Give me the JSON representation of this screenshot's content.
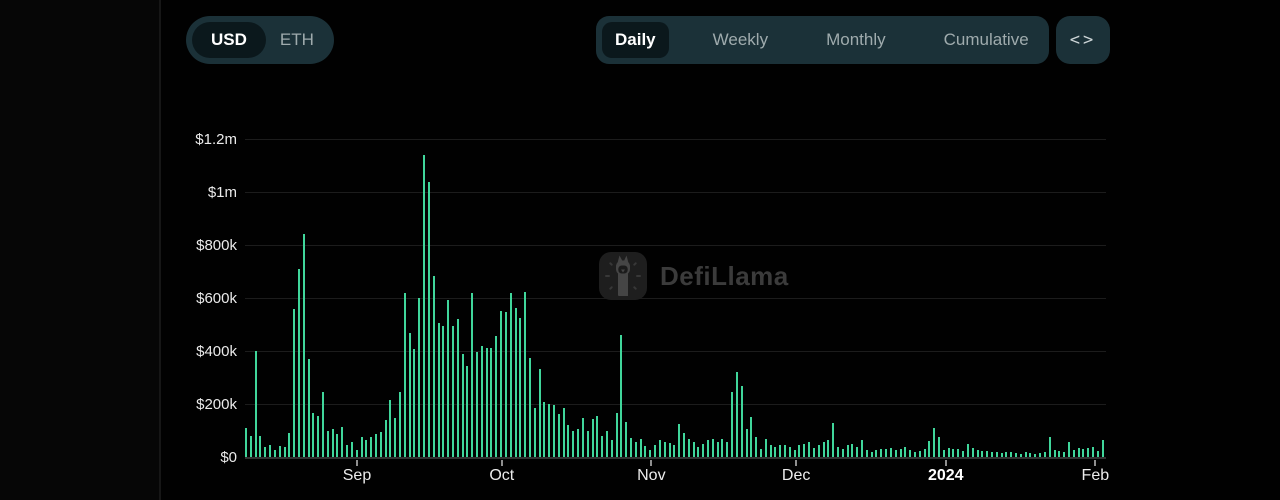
{
  "header": {
    "currency_toggle": {
      "options": [
        "USD",
        "ETH"
      ],
      "selected": "USD"
    },
    "period_tabs": {
      "options": [
        "Daily",
        "Weekly",
        "Monthly",
        "Cumulative"
      ],
      "selected": "Daily"
    },
    "embed_button_label": "<>"
  },
  "watermark": {
    "text": "DefiLlama"
  },
  "chart_data": {
    "type": "bar",
    "title": "",
    "xlabel": "",
    "ylabel": "",
    "unit": "USD",
    "bar_color": "#40d69b",
    "grid": "horizontal",
    "y_max_k": 1200,
    "y_tick_step_k": 200,
    "y_tick_labels": [
      "$0",
      "$200k",
      "$400k",
      "$600k",
      "$800k",
      "$1m",
      "$1.2m"
    ],
    "x_tick_labels": [
      {
        "label": "Sep",
        "index": 23,
        "bold": false
      },
      {
        "label": "Oct",
        "index": 53,
        "bold": false
      },
      {
        "label": "Nov",
        "index": 84,
        "bold": false
      },
      {
        "label": "Dec",
        "index": 114,
        "bold": false
      },
      {
        "label": "2024",
        "index": 145,
        "bold": true
      },
      {
        "label": "Feb",
        "index": 176,
        "bold": false
      }
    ],
    "x_range_note": "daily bars, early Aug 2023 through early Feb 2024",
    "values_usd_k": [
      110,
      80,
      400,
      80,
      36,
      45,
      25,
      40,
      37,
      90,
      560,
      710,
      840,
      370,
      165,
      155,
      245,
      100,
      105,
      86,
      115,
      45,
      55,
      25,
      77,
      65,
      77,
      87,
      96,
      140,
      215,
      146,
      244,
      620,
      467,
      407,
      599,
      1140,
      1036,
      683,
      504,
      495,
      593,
      495,
      520,
      390,
      344,
      620,
      395,
      420,
      410,
      413,
      457,
      551,
      547,
      620,
      563,
      526,
      622,
      372,
      184,
      334,
      207,
      200,
      197,
      163,
      184,
      119,
      100,
      106,
      146,
      100,
      144,
      154,
      81,
      100,
      63,
      167,
      460,
      132,
      71,
      56,
      69,
      41,
      25,
      44,
      63,
      56,
      54,
      44,
      125,
      91,
      69,
      56,
      38,
      50,
      63,
      69,
      56,
      69,
      56,
      244,
      320,
      269,
      106,
      150,
      75,
      31,
      69,
      44,
      38,
      44,
      46,
      38,
      25,
      44,
      50,
      56,
      34,
      44,
      56,
      63,
      128,
      38,
      31,
      44,
      50,
      38,
      63,
      25,
      19,
      25,
      29,
      31,
      34,
      25,
      31,
      38,
      25,
      19,
      21,
      31,
      59,
      109,
      75,
      25,
      34,
      29,
      31,
      21,
      50,
      34,
      25,
      21,
      21,
      18,
      20,
      15,
      18,
      20,
      15,
      13,
      18,
      15,
      13,
      15,
      18,
      75,
      25,
      21,
      19,
      56,
      25,
      34,
      29,
      34,
      38,
      21,
      63
    ]
  }
}
